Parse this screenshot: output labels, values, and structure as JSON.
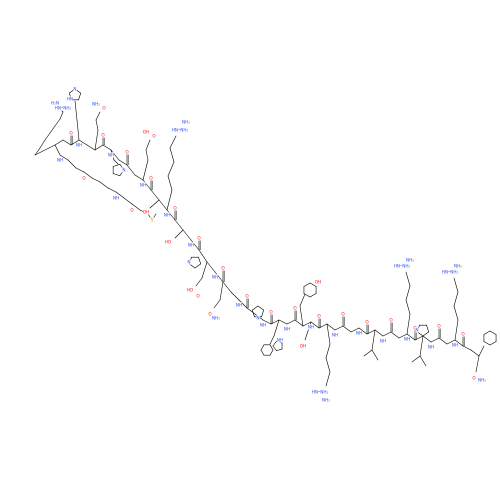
{
  "colors": {
    "bond": "#000000",
    "O": "#ff0d0d",
    "N": "#3050f8",
    "S": "#c8a000",
    "C": "#000000"
  },
  "labels": {
    "O": "O",
    "OH": "OH",
    "HO": "HO",
    "NH": "NH",
    "HN": "HN",
    "NH2": "NH₂",
    "H2N": "H₂N",
    "N": "N",
    "S": "S",
    "HNNH2": "HN⁼NH₂"
  }
}
